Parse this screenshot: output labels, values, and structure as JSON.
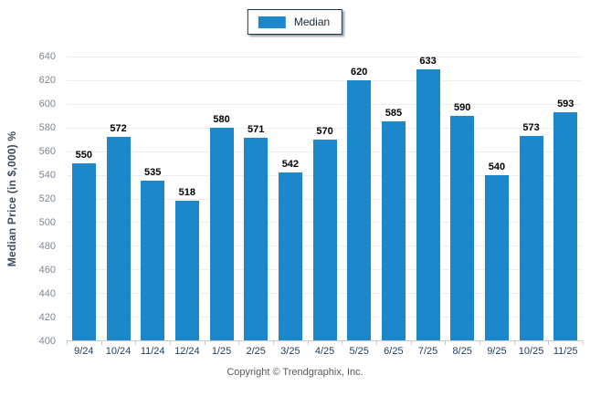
{
  "legend": {
    "label": "Median"
  },
  "footer": {
    "copyright": "Copyright © Trendgraphix, Inc."
  },
  "colors": {
    "bar": "#1d87cb",
    "grid": "#ededed",
    "axis": "#c9c9c9",
    "y_tick_label": "#7b8795",
    "x_tick_label": "#1e3d5c",
    "value_label": "#000000",
    "y_axis_title": "#3d4d5e",
    "legend_border": "#17365d",
    "legend_text": "#1b2a3a",
    "copyright": "#595959"
  },
  "chart_data": {
    "type": "bar",
    "title": "",
    "series_name": "Median",
    "categories": [
      "9/24",
      "10/24",
      "11/24",
      "12/24",
      "1/25",
      "2/25",
      "3/25",
      "4/25",
      "5/25",
      "6/25",
      "7/25",
      "8/25",
      "9/25",
      "10/25",
      "11/25"
    ],
    "values": [
      550,
      572,
      535,
      518,
      580,
      571,
      542,
      570,
      620,
      585,
      633,
      590,
      540,
      573,
      593
    ],
    "xlabel": "",
    "ylabel": "Median Price (in $,000) %",
    "ylim": [
      400,
      640
    ],
    "yticks": [
      400,
      420,
      440,
      460,
      480,
      500,
      520,
      540,
      560,
      580,
      600,
      620,
      640
    ],
    "grid": "horizontal-major-only",
    "legend_position": "top-center",
    "value_labels": "above-bars",
    "bar_color": "#1d87cb"
  }
}
